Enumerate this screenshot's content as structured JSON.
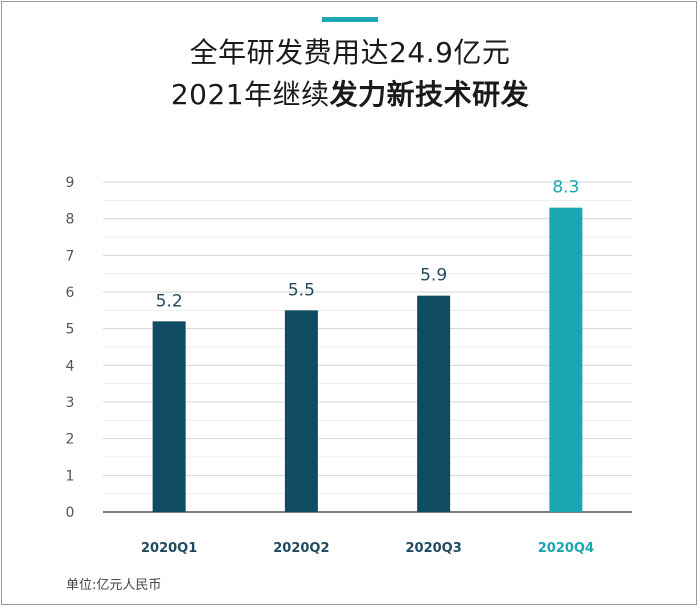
{
  "header": {
    "title_line1": "全年研发费用达24.9亿元",
    "title_line2_regular": "2021年继续",
    "title_line2_bold": "发力新技术研发"
  },
  "footnote": "单位:亿元人民币",
  "colors": {
    "accent": "#1aa6b3",
    "bar_dark": "#0f4b63",
    "bar_highlight": "#1aa6b3",
    "label_dark": "#1f4a60",
    "grid": "#d6d6d6"
  },
  "chart_data": {
    "type": "bar",
    "categories": [
      "2020Q1",
      "2020Q2",
      "2020Q3",
      "2020Q4"
    ],
    "values": [
      5.2,
      5.5,
      5.9,
      8.3
    ],
    "data_labels": [
      "5.2",
      "5.5",
      "5.9",
      "8.3"
    ],
    "highlight_index": 3,
    "ylim": [
      0,
      9
    ],
    "yticks": [
      "0",
      "1",
      "2",
      "3",
      "4",
      "5",
      "6",
      "7",
      "8",
      "9"
    ],
    "grid": true,
    "legend": "none"
  }
}
